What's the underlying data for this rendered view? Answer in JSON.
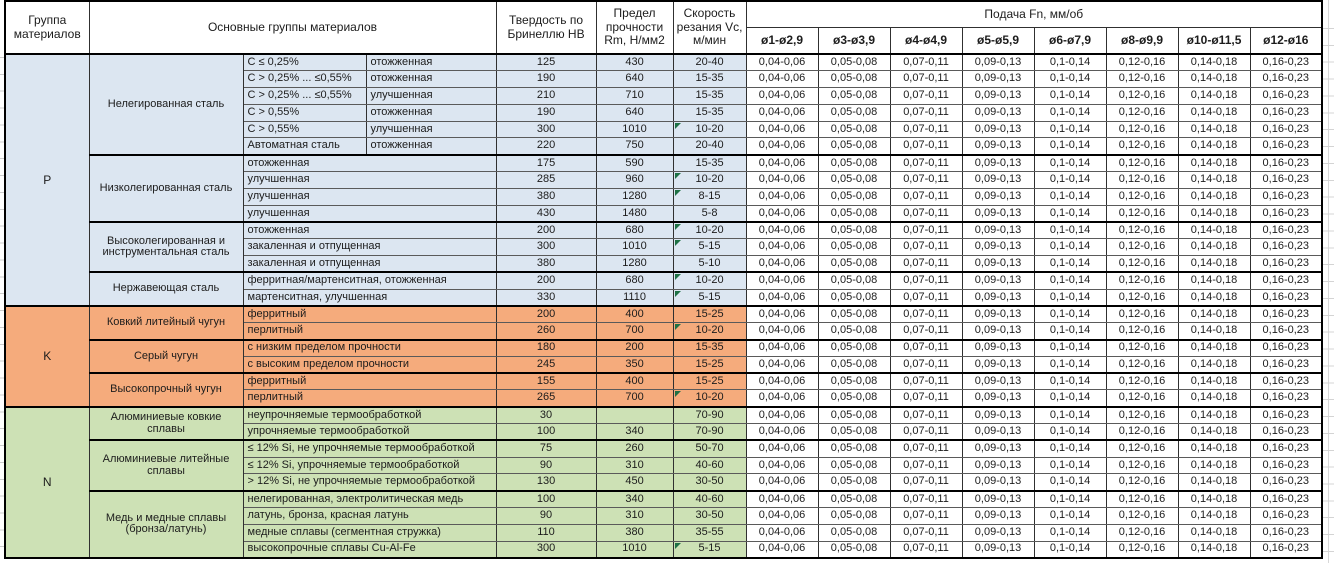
{
  "header": {
    "group_col": "Группа материалов",
    "materials_col": "Основные группы материалов",
    "hardness_col": "Твердость по Бринеллю НВ",
    "strength_col": "Предел прочности Rm, Н/мм2",
    "speed_col": "Скорость резания Vc, м/мин",
    "feed_col": "Подача Fn, мм/об",
    "diameters": [
      "ø1-ø2,9",
      "ø3-ø3,9",
      "ø4-ø4,9",
      "ø5-ø5,9",
      "ø6-ø7,9",
      "ø8-ø9,9",
      "ø10-ø11,5",
      "ø12-ø16"
    ]
  },
  "feed_values": [
    "0,04-0,06",
    "0,05-0,08",
    "0,07-0,11",
    "0,09-0,13",
    "0,1-0,14",
    "0,12-0,16",
    "0,14-0,18",
    "0,16-0,23"
  ],
  "colors": {
    "group_p": "#dce6f1",
    "group_k": "#f5ab7c",
    "group_n": "#cde1b5",
    "marker": "#1e7145"
  },
  "groups": [
    {
      "letter": "P",
      "color": "#dce6f1",
      "families": [
        {
          "name": "Нелегированная сталь",
          "rows": [
            {
              "spec": "C ≤ 0,25%",
              "state": "отожженная",
              "hb": "125",
              "rm": "430",
              "vc": "20-40"
            },
            {
              "spec": "C > 0,25% ... ≤0,55%",
              "state": "отожженная",
              "hb": "190",
              "rm": "640",
              "vc": "15-35"
            },
            {
              "spec": "C > 0,25% ... ≤0,55%",
              "state": "улучшенная",
              "hb": "210",
              "rm": "710",
              "vc": "15-35"
            },
            {
              "spec": "C > 0,55%",
              "state": "отожженная",
              "hb": "190",
              "rm": "640",
              "vc": "15-35"
            },
            {
              "spec": "C > 0,55%",
              "state": "улучшенная",
              "hb": "300",
              "rm": "1010",
              "vc": "10-20",
              "marker": true
            },
            {
              "spec": "Автоматная сталь",
              "state": "отожженная",
              "hb": "220",
              "rm": "750",
              "vc": "20-40"
            }
          ]
        },
        {
          "name": "Низколегированная сталь",
          "rows": [
            {
              "state": "отожженная",
              "hb": "175",
              "rm": "590",
              "vc": "15-35"
            },
            {
              "state": "улучшенная",
              "hb": "285",
              "rm": "960",
              "vc": "10-20",
              "marker": true
            },
            {
              "state": "улучшенная",
              "hb": "380",
              "rm": "1280",
              "vc": "8-15",
              "marker": true
            },
            {
              "state": "улучшенная",
              "hb": "430",
              "rm": "1480",
              "vc": "5-8"
            }
          ]
        },
        {
          "name": "Высоколегированная и инструментальная сталь",
          "rows": [
            {
              "state": "отожженная",
              "hb": "200",
              "rm": "680",
              "vc": "10-20",
              "marker": true
            },
            {
              "state": "закаленная и отпущенная",
              "hb": "300",
              "rm": "1010",
              "vc": "5-15",
              "marker": true
            },
            {
              "state": "закаленная и отпущенная",
              "hb": "380",
              "rm": "1280",
              "vc": "5-10"
            }
          ]
        },
        {
          "name": "Нержавеющая сталь",
          "rows": [
            {
              "state": "ферритная/мартенситная, отожженная",
              "hb": "200",
              "rm": "680",
              "vc": "10-20",
              "marker": true
            },
            {
              "state": "мартенситная, улучшенная",
              "hb": "330",
              "rm": "1110",
              "vc": "5-15",
              "marker": true
            }
          ]
        }
      ]
    },
    {
      "letter": "K",
      "color": "#f5ab7c",
      "families": [
        {
          "name": "Ковкий литейный чугун",
          "rows": [
            {
              "state": "ферритный",
              "hb": "200",
              "rm": "400",
              "vc": "15-25"
            },
            {
              "state": "перлитный",
              "hb": "260",
              "rm": "700",
              "vc": "10-20",
              "marker": true
            }
          ]
        },
        {
          "name": "Серый чугун",
          "rows": [
            {
              "state": "с низким пределом прочности",
              "hb": "180",
              "rm": "200",
              "vc": "15-35"
            },
            {
              "state": "с высоким пределом прочности",
              "hb": "245",
              "rm": "350",
              "vc": "15-25"
            }
          ]
        },
        {
          "name": "Высокопрочный чугун",
          "rows": [
            {
              "state": "ферритный",
              "hb": "155",
              "rm": "400",
              "vc": "15-25"
            },
            {
              "state": "перлитный",
              "hb": "265",
              "rm": "700",
              "vc": "10-20",
              "marker": true
            }
          ]
        }
      ]
    },
    {
      "letter": "N",
      "color": "#cde1b5",
      "families": [
        {
          "name": "Алюминиевые ковкие сплавы",
          "rows": [
            {
              "state": "неупрочняемые термообработкой",
              "hb": "30",
              "rm": "",
              "vc": "70-90"
            },
            {
              "state": "упрочняемые термообработкой",
              "hb": "100",
              "rm": "340",
              "vc": "70-90"
            }
          ]
        },
        {
          "name": "Алюминиевые литейные сплавы",
          "rows": [
            {
              "state": "≤ 12% Si, не упрочняемые термообработкой",
              "hb": "75",
              "rm": "260",
              "vc": "50-70"
            },
            {
              "state": "≤ 12% Si, упрочняемые термообработкой",
              "hb": "90",
              "rm": "310",
              "vc": "40-60"
            },
            {
              "state": "> 12% Si, не упрочняемые термообработкой",
              "hb": "130",
              "rm": "450",
              "vc": "30-50"
            }
          ]
        },
        {
          "name": "Медь и медные сплавы (бронза/латунь)",
          "rows": [
            {
              "state": "нелегированная, электролитическая медь",
              "hb": "100",
              "rm": "340",
              "vc": "40-60"
            },
            {
              "state": "латунь, бронза, красная латунь",
              "hb": "90",
              "rm": "310",
              "vc": "30-50"
            },
            {
              "state": "медные сплавы (сегментная стружка)",
              "hb": "110",
              "rm": "380",
              "vc": "35-55"
            },
            {
              "state": "высокопрочные сплавы Cu-Al-Fe",
              "hb": "300",
              "rm": "1010",
              "vc": "5-15",
              "marker": true
            }
          ]
        }
      ]
    }
  ]
}
